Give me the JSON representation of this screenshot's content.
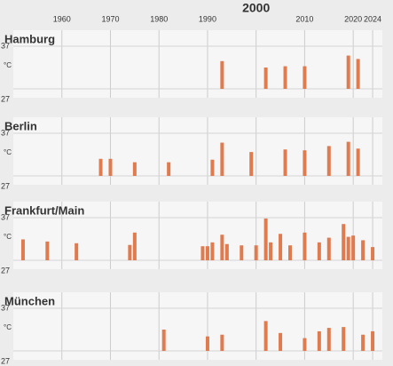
{
  "chart_data": [
    {
      "type": "bar",
      "title": "Hamburg",
      "y_label": "°C",
      "color": "#e07b4f",
      "xlim": [
        1950,
        2026
      ],
      "ylim": [
        27,
        37
      ],
      "yticks": [
        27,
        37
      ],
      "xticks": [
        1960,
        1970,
        1980,
        1990,
        2000,
        2010,
        2020,
        2024
      ],
      "x": [
        1993,
        2002,
        2006,
        2010,
        2019,
        2021
      ],
      "values": [
        33.5,
        32,
        32.3,
        32.3,
        34.8,
        34
      ]
    },
    {
      "type": "bar",
      "title": "Berlin",
      "y_label": "°C",
      "color": "#e07b4f",
      "xlim": [
        1950,
        2026
      ],
      "ylim": [
        27,
        37
      ],
      "yticks": [
        27,
        37
      ],
      "x": [
        1968,
        1970,
        1975,
        1982,
        1991,
        1993,
        1999,
        2006,
        2010,
        2015,
        2019,
        2021
      ],
      "values": [
        31,
        31,
        30.2,
        30.2,
        30.8,
        34.8,
        32.6,
        33.2,
        33,
        34,
        35,
        33.4
      ]
    },
    {
      "type": "bar",
      "title": "Frankfurt/Main",
      "y_label": "°C",
      "color": "#e07b4f",
      "xlim": [
        1950,
        2026
      ],
      "ylim": [
        27,
        37
      ],
      "yticks": [
        27,
        37
      ],
      "x": [
        1952,
        1957,
        1963,
        1974,
        1975,
        1989,
        1990,
        1991,
        1993,
        1994,
        1997,
        2000,
        2002,
        2003,
        2005,
        2007,
        2010,
        2013,
        2015,
        2018,
        2019,
        2020,
        2022,
        2024
      ],
      "values": [
        31.9,
        31.4,
        31,
        30.6,
        33.5,
        30.3,
        30.3,
        31.2,
        33,
        30.8,
        30.5,
        30.5,
        36.8,
        31.2,
        33.2,
        30.5,
        33.5,
        31.2,
        32.3,
        35.5,
        32.5,
        32.8,
        31.7,
        30.1
      ]
    },
    {
      "type": "bar",
      "title": "München",
      "y_label": "°C",
      "color": "#e07b4f",
      "xlim": [
        1950,
        2026
      ],
      "ylim": [
        27,
        37
      ],
      "yticks": [
        27,
        37
      ],
      "x": [
        1981,
        1990,
        1993,
        2002,
        2005,
        2010,
        2013,
        2015,
        2018,
        2022,
        2024
      ],
      "values": [
        32,
        30.4,
        30.8,
        34,
        31.2,
        30,
        31.6,
        32.4,
        32.6,
        30.8,
        31.6
      ]
    }
  ]
}
